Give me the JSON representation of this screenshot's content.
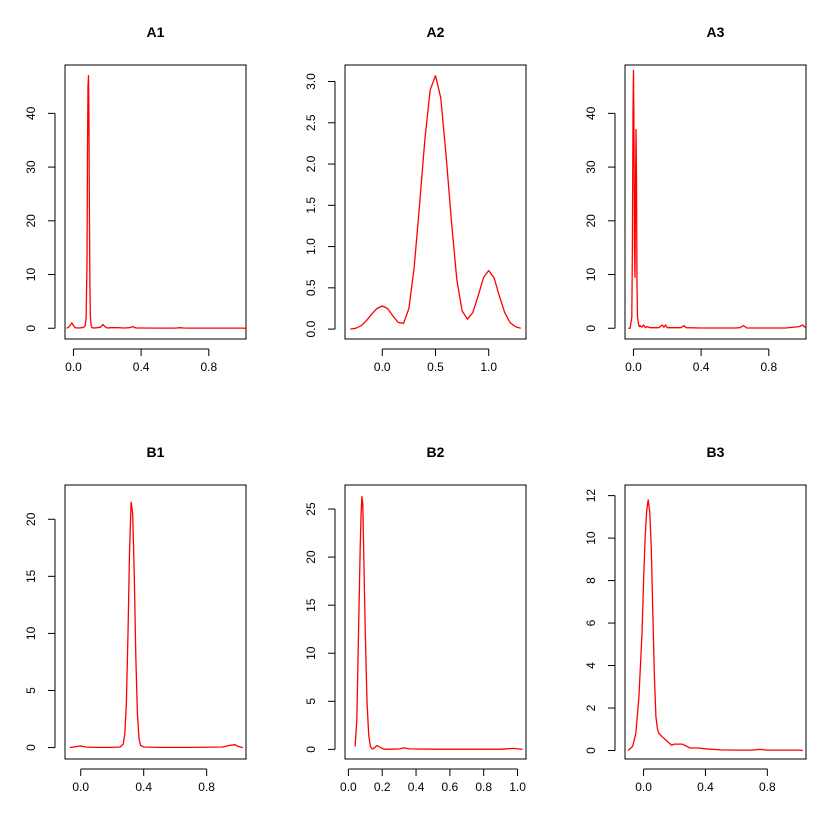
{
  "colors": {
    "line": "#ff0000",
    "axis": "#000000",
    "background": "#ffffff"
  },
  "chart_data": [
    {
      "title": "A1",
      "type": "line",
      "xlim": [
        -0.05,
        1.02
      ],
      "ylim": [
        -2,
        49
      ],
      "xticks": [
        0.0,
        0.4,
        0.8
      ],
      "xtick_labels": [
        "0.0",
        "0.4",
        "0.8"
      ],
      "yticks": [
        0,
        10,
        20,
        30,
        40
      ],
      "ytick_labels": [
        "0",
        "10",
        "20",
        "30",
        "40"
      ],
      "series": [
        {
          "x": [
            -0.04,
            -0.025,
            -0.01,
            0.0,
            0.01,
            0.03,
            0.05,
            0.06,
            0.07,
            0.075,
            0.08,
            0.083,
            0.086,
            0.089,
            0.091,
            0.094,
            0.097,
            0.1,
            0.105,
            0.11,
            0.12,
            0.14,
            0.16,
            0.175,
            0.185,
            0.2,
            0.22,
            0.26,
            0.3,
            0.33,
            0.35,
            0.37,
            0.4,
            0.5,
            0.6,
            0.63,
            0.65,
            0.7,
            0.8,
            0.9,
            1.0,
            1.02
          ],
          "y": [
            0,
            0.3,
            1.0,
            0.5,
            0.1,
            0.05,
            0.1,
            0.2,
            0.5,
            2.0,
            12.0,
            33.0,
            45.0,
            47.0,
            40.0,
            22.0,
            8.0,
            2.0,
            0.4,
            0.1,
            0.05,
            0.1,
            0.2,
            0.7,
            0.3,
            0.05,
            0.1,
            0.1,
            0.05,
            0.1,
            0.3,
            0.05,
            0.05,
            0.03,
            0.03,
            0.1,
            0.05,
            0.03,
            0.02,
            0.02,
            0.02,
            0
          ]
        }
      ]
    },
    {
      "title": "A2",
      "type": "line",
      "xlim": [
        -0.35,
        1.35
      ],
      "ylim": [
        -0.12,
        3.2
      ],
      "xticks": [
        0.0,
        0.5,
        1.0
      ],
      "xtick_labels": [
        "0.0",
        "0.5",
        "1.0"
      ],
      "yticks": [
        0.0,
        0.5,
        1.0,
        1.5,
        2.0,
        2.5,
        3.0
      ],
      "ytick_labels": [
        "0.0",
        "0.5",
        "1.0",
        "1.5",
        "2.0",
        "2.5",
        "3.0"
      ],
      "series": [
        {
          "x": [
            -0.3,
            -0.25,
            -0.2,
            -0.15,
            -0.1,
            -0.05,
            0.0,
            0.05,
            0.1,
            0.15,
            0.2,
            0.25,
            0.3,
            0.35,
            0.4,
            0.45,
            0.5,
            0.55,
            0.6,
            0.65,
            0.7,
            0.75,
            0.8,
            0.85,
            0.9,
            0.95,
            1.0,
            1.05,
            1.1,
            1.15,
            1.2,
            1.25,
            1.3
          ],
          "y": [
            0.0,
            0.01,
            0.04,
            0.1,
            0.18,
            0.25,
            0.28,
            0.25,
            0.16,
            0.08,
            0.07,
            0.25,
            0.75,
            1.5,
            2.3,
            2.9,
            3.07,
            2.8,
            2.1,
            1.3,
            0.6,
            0.22,
            0.12,
            0.2,
            0.4,
            0.62,
            0.71,
            0.62,
            0.4,
            0.2,
            0.08,
            0.03,
            0.01
          ]
        }
      ]
    },
    {
      "title": "A3",
      "type": "line",
      "xlim": [
        -0.05,
        1.02
      ],
      "ylim": [
        -2,
        49
      ],
      "xticks": [
        0.0,
        0.4,
        0.8
      ],
      "xtick_labels": [
        "0.0",
        "0.4",
        "0.8"
      ],
      "yticks": [
        0,
        10,
        20,
        30,
        40
      ],
      "ytick_labels": [
        "0",
        "10",
        "20",
        "30",
        "40"
      ],
      "series": [
        {
          "x": [
            -0.03,
            -0.02,
            -0.01,
            -0.006,
            -0.003,
            0.0,
            0.003,
            0.006,
            0.009,
            0.012,
            0.015,
            0.018,
            0.021,
            0.024,
            0.027,
            0.03,
            0.035,
            0.04,
            0.05,
            0.06,
            0.07,
            0.08,
            0.1,
            0.15,
            0.17,
            0.18,
            0.19,
            0.2,
            0.28,
            0.3,
            0.31,
            0.4,
            0.5,
            0.6,
            0.63,
            0.65,
            0.67,
            0.8,
            0.9,
            0.98,
            1.0,
            1.02
          ],
          "y": [
            0,
            0,
            2,
            15,
            40,
            48,
            35,
            15,
            9.5,
            25,
            37,
            28,
            8,
            2,
            1.5,
            0.8,
            0.3,
            0.5,
            0.2,
            0.6,
            0.1,
            0.3,
            0.1,
            0.1,
            0.6,
            0.2,
            0.6,
            0.1,
            0.1,
            0.5,
            0.1,
            0.05,
            0.05,
            0.05,
            0.1,
            0.5,
            0.05,
            0.05,
            0.05,
            0.3,
            0.6,
            0
          ]
        }
      ]
    },
    {
      "title": "B1",
      "type": "line",
      "xlim": [
        -0.1,
        1.05
      ],
      "ylim": [
        -1,
        23
      ],
      "xticks": [
        0.0,
        0.4,
        0.8
      ],
      "xtick_labels": [
        "0.0",
        "0.4",
        "0.8"
      ],
      "yticks": [
        0,
        5,
        10,
        15,
        20
      ],
      "ytick_labels": [
        "0",
        "5",
        "10",
        "15",
        "20"
      ],
      "series": [
        {
          "x": [
            -0.07,
            -0.02,
            0.0,
            0.03,
            0.1,
            0.2,
            0.25,
            0.27,
            0.28,
            0.29,
            0.3,
            0.31,
            0.32,
            0.33,
            0.34,
            0.35,
            0.36,
            0.37,
            0.38,
            0.4,
            0.5,
            0.7,
            0.9,
            0.95,
            0.98,
            1.0,
            1.03
          ],
          "y": [
            0,
            0.1,
            0.15,
            0.05,
            0.02,
            0.02,
            0.05,
            0.3,
            1.2,
            4.0,
            10.0,
            17.0,
            21.5,
            20.5,
            15.0,
            8.0,
            3.0,
            0.8,
            0.2,
            0.05,
            0.02,
            0.02,
            0.05,
            0.2,
            0.25,
            0.1,
            0
          ]
        }
      ]
    },
    {
      "title": "B2",
      "type": "line",
      "xlim": [
        -0.02,
        1.05
      ],
      "ylim": [
        -1,
        27.5
      ],
      "xticks": [
        0.0,
        0.2,
        0.4,
        0.6,
        0.8,
        1.0
      ],
      "xtick_labels": [
        "0.0",
        "0.2",
        "0.4",
        "0.6",
        "0.8",
        "1.0"
      ],
      "yticks": [
        0,
        5,
        10,
        15,
        20,
        25
      ],
      "ytick_labels": [
        "0",
        "5",
        "10",
        "15",
        "20",
        "25"
      ],
      "series": [
        {
          "x": [
            0.04,
            0.05,
            0.06,
            0.07,
            0.075,
            0.08,
            0.085,
            0.09,
            0.1,
            0.11,
            0.12,
            0.13,
            0.14,
            0.15,
            0.17,
            0.19,
            0.21,
            0.25,
            0.3,
            0.33,
            0.36,
            0.5,
            0.7,
            0.9,
            0.98,
            1.0,
            1.03
          ],
          "y": [
            0.3,
            3.0,
            12.0,
            21.0,
            24.5,
            26.3,
            25.5,
            21.0,
            12.0,
            5.0,
            1.5,
            0.3,
            0.05,
            0.1,
            0.4,
            0.2,
            0.02,
            0.02,
            0.05,
            0.15,
            0.05,
            0.02,
            0.02,
            0.02,
            0.1,
            0.05,
            0
          ]
        }
      ]
    },
    {
      "title": "B3",
      "type": "line",
      "xlim": [
        -0.12,
        1.05
      ],
      "ylim": [
        -0.4,
        12.5
      ],
      "xticks": [
        0.0,
        0.4,
        0.8
      ],
      "xtick_labels": [
        "0.0",
        "0.4",
        "0.8"
      ],
      "yticks": [
        0,
        2,
        4,
        6,
        8,
        10,
        12
      ],
      "ytick_labels": [
        "0",
        "2",
        "4",
        "6",
        "8",
        "10",
        "12"
      ],
      "series": [
        {
          "x": [
            -0.1,
            -0.07,
            -0.05,
            -0.03,
            -0.01,
            0.0,
            0.01,
            0.02,
            0.03,
            0.04,
            0.05,
            0.06,
            0.07,
            0.08,
            0.09,
            0.1,
            0.12,
            0.15,
            0.18,
            0.2,
            0.25,
            0.3,
            0.35,
            0.4,
            0.45,
            0.5,
            0.6,
            0.7,
            0.75,
            0.8,
            0.9,
            1.0,
            1.03
          ],
          "y": [
            0.0,
            0.2,
            0.8,
            2.5,
            5.5,
            8.0,
            10.0,
            11.3,
            11.8,
            11.2,
            9.5,
            6.5,
            3.5,
            1.6,
            1.0,
            0.8,
            0.65,
            0.45,
            0.25,
            0.3,
            0.3,
            0.12,
            0.12,
            0.08,
            0.05,
            0.03,
            0.02,
            0.02,
            0.05,
            0.02,
            0.02,
            0.02,
            0
          ]
        }
      ]
    }
  ]
}
